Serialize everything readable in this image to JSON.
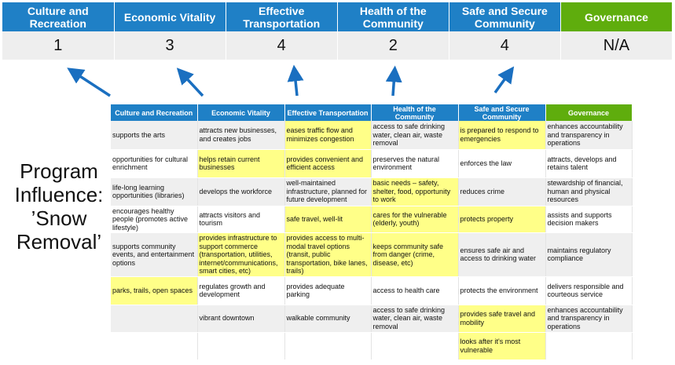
{
  "summary": {
    "headers": [
      "Culture and Recreation",
      "Economic Vitality",
      "Effective Transportation",
      "Health of the Community",
      "Safe and Secure Community",
      "Governance"
    ],
    "scores": [
      "1",
      "3",
      "4",
      "2",
      "4",
      "N/A"
    ]
  },
  "colors": {
    "header_blue": "#1f80c6",
    "governance_green": "#5fad0d",
    "highlight_yellow": "#ffff88",
    "arrow_blue": "#1a6fc0"
  },
  "program_label": {
    "line1": "Program",
    "line2": "Influence:",
    "line3": "’Snow",
    "line4": "Removal’"
  },
  "table": {
    "headers": [
      "Culture and Recreation",
      "Economic Vitality",
      "Effective Transportation",
      "Health of the Community",
      "Safe and Secure Community",
      "Governance"
    ],
    "rows": [
      {
        "cells": [
          "supports the arts",
          "attracts new businesses, and creates jobs",
          "eases traffic flow and minimizes congestion",
          "access to safe drinking water, clean air, waste removal",
          "is prepared to respond to emergencies",
          "enhances accountability and transparency in operations"
        ],
        "highlighted": [
          false,
          false,
          true,
          false,
          true,
          false
        ]
      },
      {
        "cells": [
          "opportunities for cultural enrichment",
          "helps retain current businesses",
          "provides convenient and efficient access",
          "preserves the natural environment",
          "enforces the law",
          "attracts, develops and retains talent"
        ],
        "highlighted": [
          false,
          true,
          true,
          false,
          false,
          false
        ]
      },
      {
        "cells": [
          "life-long learning opportunities (libraries)",
          "develops the workforce",
          "well-maintained infrastructure, planned for future development",
          "basic needs – safety, shelter, food, opportunity to work",
          "reduces crime",
          "stewardship of financial, human and physical resources"
        ],
        "highlighted": [
          false,
          false,
          false,
          true,
          false,
          false
        ]
      },
      {
        "cells": [
          "encourages healthy people (promotes active lifestyle)",
          "attracts visitors and tourism",
          "safe travel, well-lit",
          "cares for the vulnerable (elderly, youth)",
          "protects property",
          "assists and supports decision makers"
        ],
        "highlighted": [
          false,
          false,
          true,
          true,
          true,
          false
        ]
      },
      {
        "cells": [
          "supports community events, and entertainment options",
          "provides infrastructure to support commerce (transportation, utilities, internet/communications, smart cities, etc)",
          "provides access to multi-modal travel options (transit, public transportation, bike lanes, trails)",
          "keeps community safe from danger (crime, disease, etc)",
          "ensures safe air and access to drinking water",
          "maintains regulatory compliance"
        ],
        "highlighted": [
          false,
          true,
          true,
          true,
          false,
          false
        ]
      },
      {
        "cells": [
          "parks, trails, open spaces",
          "regulates growth and development",
          "provides adequate parking",
          "access to health care",
          "protects the environment",
          "delivers responsible and courteous service"
        ],
        "highlighted": [
          true,
          false,
          false,
          false,
          false,
          false
        ]
      },
      {
        "cells": [
          "",
          "vibrant downtown",
          "walkable community",
          "access to safe drinking water, clean air, waste removal",
          "provides safe travel and mobility",
          "enhances accountability and transparency in operations"
        ],
        "highlighted": [
          false,
          false,
          false,
          false,
          true,
          false
        ]
      },
      {
        "cells": [
          "",
          "",
          "",
          "",
          "looks after it's most vulnerable",
          ""
        ],
        "highlighted": [
          false,
          false,
          false,
          false,
          true,
          false
        ]
      }
    ]
  }
}
